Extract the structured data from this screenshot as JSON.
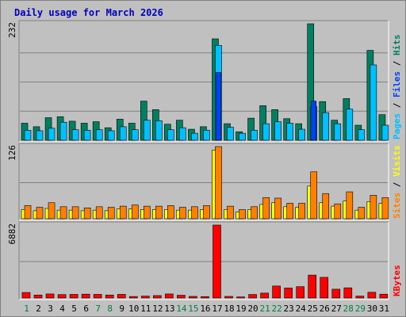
{
  "title": "Daily usage for March 2026",
  "chart_data": [
    {
      "type": "bar",
      "panel": "top",
      "ymax_label": "232",
      "ylim": [
        0,
        232
      ],
      "categories": [
        "1",
        "2",
        "3",
        "4",
        "5",
        "6",
        "7",
        "8",
        "9",
        "10",
        "11",
        "12",
        "13",
        "14",
        "15",
        "16",
        "17",
        "18",
        "19",
        "20",
        "21",
        "22",
        "23",
        "24",
        "25",
        "26",
        "27",
        "28",
        "29",
        "30",
        "31"
      ],
      "legend": [
        "Pages",
        "Files",
        "Hits"
      ],
      "series": [
        {
          "name": "Hits",
          "color": "#008060",
          "values": [
            34,
            27,
            45,
            47,
            38,
            34,
            37,
            25,
            42,
            34,
            78,
            61,
            32,
            40,
            22,
            27,
            202,
            33,
            17,
            44,
            69,
            61,
            43,
            33,
            232,
            77,
            40,
            83,
            30,
            179,
            51
          ]
        },
        {
          "name": "Files",
          "color": "#00c0ff",
          "values": [
            20,
            19,
            24,
            36,
            21,
            20,
            21,
            19,
            27,
            21,
            40,
            39,
            21,
            25,
            14,
            20,
            189,
            26,
            14,
            20,
            33,
            37,
            34,
            22,
            67,
            55,
            33,
            62,
            21,
            150,
            30
          ]
        },
        {
          "name": "Pages",
          "color": "#0040ff",
          "values": [
            0,
            0,
            0,
            0,
            0,
            0,
            0,
            0,
            0,
            0,
            0,
            0,
            0,
            0,
            0,
            0,
            135,
            0,
            0,
            0,
            0,
            0,
            0,
            0,
            78,
            0,
            0,
            0,
            0,
            0,
            0
          ]
        }
      ]
    },
    {
      "type": "bar",
      "panel": "middle",
      "ymax_label": "126",
      "ylim": [
        0,
        126
      ],
      "categories": [
        "1",
        "2",
        "3",
        "4",
        "5",
        "6",
        "7",
        "8",
        "9",
        "10",
        "11",
        "12",
        "13",
        "14",
        "15",
        "16",
        "17",
        "18",
        "19",
        "20",
        "21",
        "22",
        "23",
        "24",
        "25",
        "26",
        "27",
        "28",
        "29",
        "30",
        "31"
      ],
      "legend": [
        "Sites",
        "Visits"
      ],
      "series": [
        {
          "name": "Visits",
          "color": "#ff8000",
          "values": [
            23,
            20,
            28,
            21,
            21,
            19,
            21,
            20,
            22,
            24,
            22,
            22,
            23,
            20,
            21,
            23,
            126,
            22,
            16,
            21,
            37,
            36,
            27,
            27,
            82,
            44,
            26,
            47,
            20,
            41,
            37
          ]
        },
        {
          "name": "Sites",
          "color": "#ffff00",
          "values": [
            16,
            14,
            18,
            15,
            15,
            14,
            15,
            14,
            17,
            17,
            16,
            16,
            16,
            15,
            15,
            16,
            120,
            16,
            12,
            16,
            25,
            28,
            21,
            20,
            57,
            28,
            22,
            31,
            15,
            30,
            27
          ]
        }
      ]
    },
    {
      "type": "bar",
      "panel": "bottom",
      "ymax_label": "6882",
      "ylim": [
        0,
        6882
      ],
      "categories": [
        "1",
        "2",
        "3",
        "4",
        "5",
        "6",
        "7",
        "8",
        "9",
        "10",
        "11",
        "12",
        "13",
        "14",
        "15",
        "16",
        "17",
        "18",
        "19",
        "20",
        "21",
        "22",
        "23",
        "24",
        "25",
        "26",
        "27",
        "28",
        "29",
        "30",
        "31"
      ],
      "legend": [
        "KBytes"
      ],
      "series": [
        {
          "name": "KBytes",
          "color": "#ff0000",
          "values": [
            520,
            280,
            380,
            320,
            340,
            360,
            340,
            280,
            340,
            140,
            180,
            230,
            380,
            260,
            150,
            130,
            6882,
            150,
            100,
            330,
            460,
            1130,
            940,
            1070,
            2160,
            1950,
            830,
            960,
            180,
            540,
            360
          ]
        }
      ]
    }
  ],
  "weekend_days": [
    "1",
    "7",
    "8",
    "14",
    "15",
    "21",
    "22",
    "28",
    "29"
  ],
  "colors": {
    "weekday_label": "#000000",
    "weekend_label": "#008040"
  }
}
